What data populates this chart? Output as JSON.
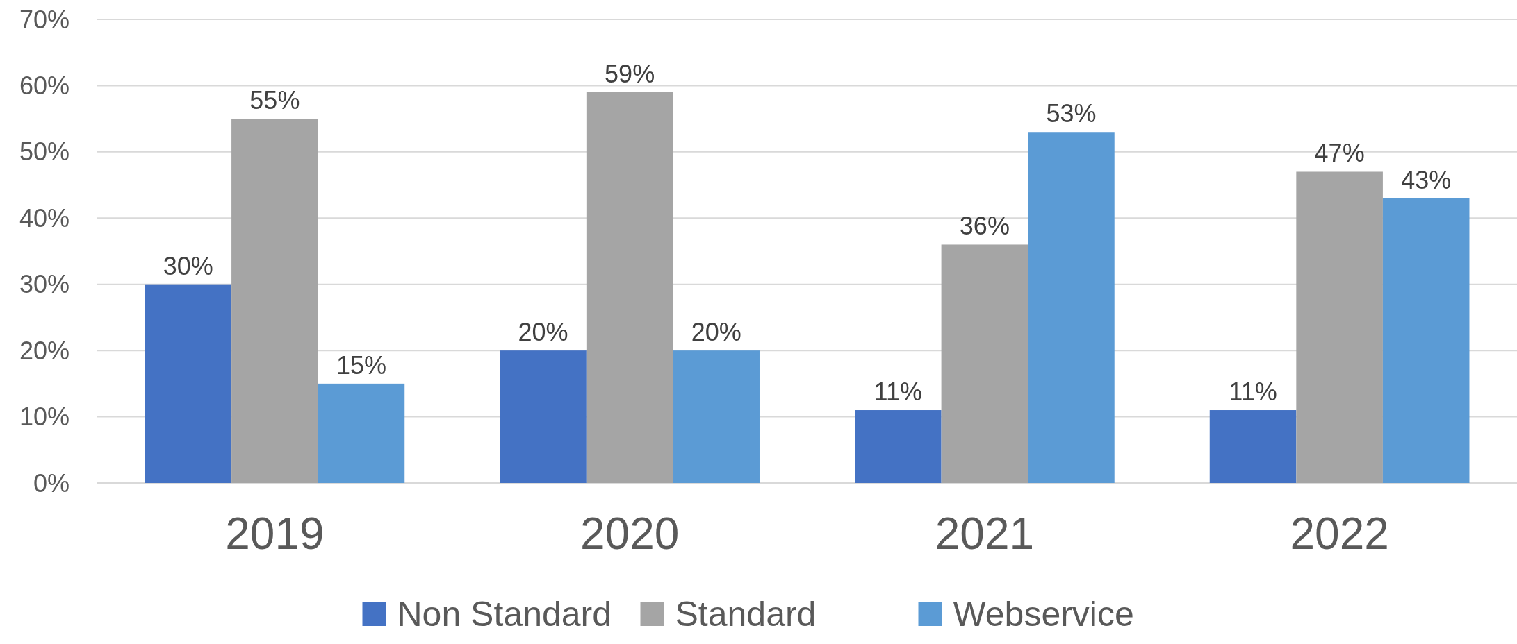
{
  "chart_data": {
    "type": "bar",
    "categories": [
      "2019",
      "2020",
      "2021",
      "2022"
    ],
    "series": [
      {
        "name": "Non Standard",
        "color": "#4472c4",
        "values": [
          30,
          20,
          11,
          11
        ],
        "value_labels": [
          "30%",
          "20%",
          "11%",
          "11%"
        ]
      },
      {
        "name": "Standard",
        "color": "#a5a5a5",
        "values": [
          55,
          59,
          36,
          47
        ],
        "value_labels": [
          "55%",
          "59%",
          "36%",
          "47%"
        ]
      },
      {
        "name": "Webservice",
        "color": "#5b9bd5",
        "values": [
          15,
          20,
          53,
          43
        ],
        "value_labels": [
          "15%",
          "20%",
          "53%",
          "43%"
        ]
      }
    ],
    "ylim": [
      0,
      70
    ],
    "yticks": [
      {
        "value": 0,
        "label": "0%"
      },
      {
        "value": 10,
        "label": "10%"
      },
      {
        "value": 20,
        "label": "20%"
      },
      {
        "value": 30,
        "label": "30%"
      },
      {
        "value": 40,
        "label": "40%"
      },
      {
        "value": 50,
        "label": "50%"
      },
      {
        "value": 60,
        "label": "60%"
      },
      {
        "value": 70,
        "label": "70%"
      }
    ],
    "grid": "y",
    "legend": "bottom"
  }
}
